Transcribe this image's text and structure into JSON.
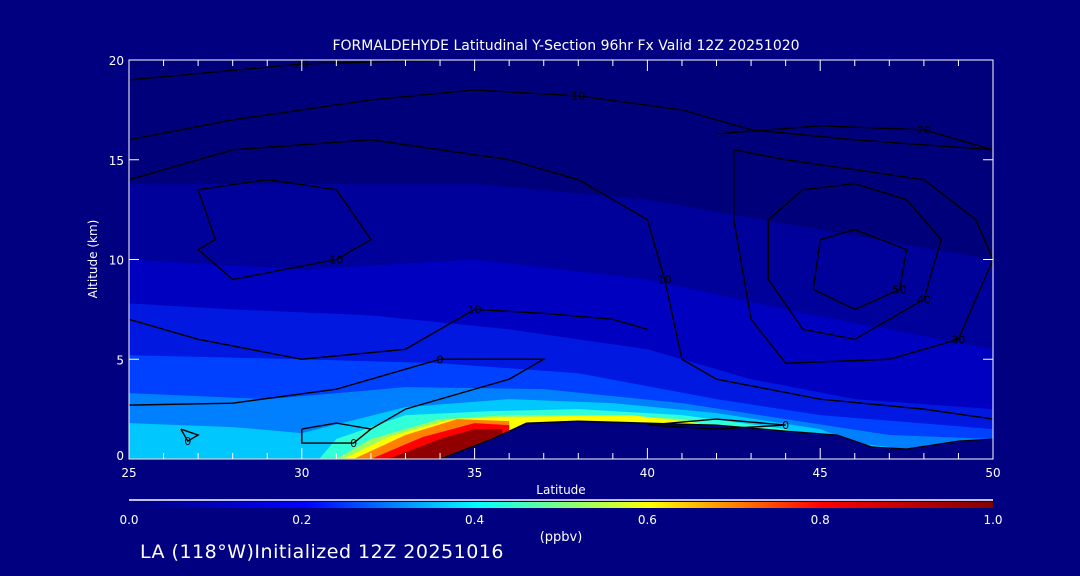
{
  "chart_data": {
    "type": "heatmap",
    "title": "FORMALDEHYDE Latitudinal Y-Section 96hr  Fx Valid 12Z 20251020",
    "xlabel": "Latitude",
    "ylabel": "Altitude (km)",
    "xlim": [
      25,
      50
    ],
    "ylim": [
      0,
      20
    ],
    "xticks": [
      "25",
      "30",
      "35",
      "40",
      "45",
      "50"
    ],
    "yticks": [
      "0",
      "5",
      "10",
      "15",
      "20"
    ],
    "colorbar": {
      "label": "(ppbv)",
      "range": [
        0.0,
        1.0
      ],
      "ticks": [
        "0.0",
        "0.2",
        "0.4",
        "0.6",
        "0.8",
        "1.0"
      ],
      "colormap": [
        "#000080",
        "#0000ff",
        "#00ffff",
        "#ffff00",
        "#ff0000",
        "#800000"
      ]
    },
    "filled_regions": [
      {
        "level": 0.05,
        "color": "#00009a",
        "top": [
          [
            25,
            13.8
          ],
          [
            35,
            13.8
          ],
          [
            40,
            13
          ],
          [
            45,
            11.5
          ],
          [
            50,
            10
          ]
        ]
      },
      {
        "level": 0.08,
        "color": "#0000c0",
        "top": [
          [
            25,
            10
          ],
          [
            30,
            9.5
          ],
          [
            35,
            10
          ],
          [
            40,
            9
          ],
          [
            44,
            7.5
          ],
          [
            47,
            6.5
          ],
          [
            50,
            5.5
          ]
        ]
      },
      {
        "level": 0.12,
        "color": "#0018e0",
        "top": [
          [
            25,
            7.8
          ],
          [
            28,
            7.5
          ],
          [
            32,
            7.2
          ],
          [
            36,
            6.5
          ],
          [
            40,
            5.5
          ],
          [
            43,
            4
          ],
          [
            46,
            3
          ],
          [
            50,
            2.5
          ]
        ]
      },
      {
        "level": 0.16,
        "color": "#0040ff",
        "top": [
          [
            25,
            5.2
          ],
          [
            30,
            5
          ],
          [
            34,
            4.8
          ],
          [
            38,
            4.3
          ],
          [
            42,
            3
          ],
          [
            45,
            2.2
          ],
          [
            50,
            1.5
          ]
        ]
      },
      {
        "level": 0.22,
        "color": "#0080ff",
        "top": [
          [
            25,
            3.3
          ],
          [
            29,
            3
          ],
          [
            33,
            3.6
          ],
          [
            37,
            3.5
          ],
          [
            41,
            2.8
          ],
          [
            44,
            2
          ],
          [
            47,
            1.2
          ],
          [
            50,
            1
          ]
        ]
      },
      {
        "level": 0.3,
        "color": "#00c8ff",
        "top": [
          [
            25,
            1.8
          ],
          [
            28,
            1.6
          ],
          [
            30,
            1.3
          ],
          [
            33,
            2.6
          ],
          [
            36,
            3
          ],
          [
            39,
            2.8
          ],
          [
            42,
            2.3
          ],
          [
            45,
            1.5
          ],
          [
            46,
            0.8
          ],
          [
            47,
            0.6
          ]
        ]
      },
      {
        "level": 0.4,
        "color": "#30ffd8",
        "top": [
          [
            30.5,
            0
          ],
          [
            31,
            1
          ],
          [
            33,
            2.2
          ],
          [
            35.5,
            2.4
          ],
          [
            38,
            2.5
          ],
          [
            41,
            2.2
          ],
          [
            44,
            1.5
          ],
          [
            45,
            1
          ]
        ]
      },
      {
        "level": 0.5,
        "color": "#a0ff60",
        "top": [
          [
            31,
            0
          ],
          [
            32,
            1
          ],
          [
            34,
            2
          ],
          [
            36,
            2.2
          ],
          [
            39,
            2.2
          ],
          [
            41,
            2
          ],
          [
            42,
            1.5
          ]
        ]
      },
      {
        "level": 0.6,
        "color": "#ffff00",
        "top": [
          [
            31.2,
            0
          ],
          [
            32.5,
            1.1
          ],
          [
            34.3,
            2
          ],
          [
            36,
            2.1
          ],
          [
            39.5,
            2.2
          ],
          [
            41.5,
            1.8
          ]
        ]
      },
      {
        "level": 0.75,
        "color": "#ff8000",
        "top": [
          [
            31.5,
            0
          ],
          [
            33,
            1.2
          ],
          [
            34.5,
            2
          ],
          [
            36,
            1.9
          ]
        ]
      },
      {
        "level": 0.9,
        "color": "#ff0000",
        "top": [
          [
            32,
            0
          ],
          [
            33.5,
            1.1
          ],
          [
            35,
            1.8
          ],
          [
            36,
            1.7
          ]
        ]
      },
      {
        "level": 1.0,
        "color": "#900000",
        "top": [
          [
            32.5,
            0
          ],
          [
            34,
            1.0
          ],
          [
            35,
            1.5
          ],
          [
            35.8,
            1.5
          ]
        ]
      }
    ],
    "terrain": [
      [
        25,
        0
      ],
      [
        34,
        0
      ],
      [
        35.5,
        1
      ],
      [
        36.5,
        1.8
      ],
      [
        38,
        1.9
      ],
      [
        42,
        1.7
      ],
      [
        44,
        1.4
      ],
      [
        45.5,
        1.2
      ],
      [
        46.5,
        0.6
      ],
      [
        47.5,
        0.5
      ],
      [
        49,
        0.9
      ],
      [
        50,
        1
      ]
    ],
    "contour_labels": [
      "0",
      "10",
      "20",
      "30",
      "40",
      "50"
    ],
    "contours": [
      {
        "label": "10",
        "points": [
          [
            25,
            16
          ],
          [
            28,
            17
          ],
          [
            32,
            18
          ],
          [
            35,
            18.5
          ],
          [
            38,
            18.2
          ],
          [
            41,
            17.5
          ],
          [
            43,
            16.5
          ],
          [
            46,
            16
          ],
          [
            50,
            15.5
          ]
        ]
      },
      {
        "label": "20",
        "points": [
          [
            25,
            19
          ],
          [
            30,
            19.8
          ],
          [
            34,
            20
          ]
        ]
      },
      {
        "label": "20",
        "points": [
          [
            42,
            16.3
          ],
          [
            45,
            16.7
          ],
          [
            48,
            16.5
          ],
          [
            50,
            15.5
          ]
        ]
      },
      {
        "label": "10",
        "points": [
          [
            25,
            14
          ],
          [
            28,
            15.5
          ],
          [
            32,
            16
          ],
          [
            36,
            15
          ],
          [
            38,
            14
          ],
          [
            40,
            12
          ],
          [
            40.5,
            9
          ],
          [
            41,
            5
          ],
          [
            42,
            4
          ],
          [
            45,
            3
          ],
          [
            48,
            2.5
          ],
          [
            50,
            2
          ]
        ]
      },
      {
        "label": "30",
        "points": [
          [
            42.5,
            15.5
          ],
          [
            44,
            15
          ],
          [
            46,
            14.5
          ],
          [
            48,
            14
          ],
          [
            49.5,
            12
          ],
          [
            50,
            10
          ],
          [
            49,
            6
          ],
          [
            47,
            5
          ],
          [
            44,
            4.8
          ],
          [
            43,
            7
          ],
          [
            42.5,
            12
          ],
          [
            42.5,
            15.5
          ]
        ]
      },
      {
        "label": "40",
        "points": [
          [
            43.5,
            12
          ],
          [
            44.5,
            13.5
          ],
          [
            46,
            13.8
          ],
          [
            47.5,
            13
          ],
          [
            48.5,
            11
          ],
          [
            48,
            8
          ],
          [
            46,
            6
          ],
          [
            44.5,
            6.5
          ],
          [
            43.5,
            9
          ],
          [
            43.5,
            12
          ]
        ]
      },
      {
        "label": "50",
        "points": [
          [
            45,
            11
          ],
          [
            46,
            11.5
          ],
          [
            47.5,
            10.5
          ],
          [
            47.3,
            8.5
          ],
          [
            46,
            7.5
          ],
          [
            44.8,
            8.5
          ],
          [
            45,
            11
          ]
        ]
      },
      {
        "label": "10",
        "points": [
          [
            27,
            13.5
          ],
          [
            29,
            14
          ],
          [
            31,
            13.5
          ],
          [
            32,
            11
          ],
          [
            31,
            10
          ],
          [
            28,
            9
          ],
          [
            27,
            10.5
          ],
          [
            27.5,
            11
          ],
          [
            27,
            13.5
          ]
        ]
      },
      {
        "label": "10",
        "points": [
          [
            25,
            7
          ],
          [
            27,
            6
          ],
          [
            30,
            5
          ],
          [
            33,
            5.5
          ],
          [
            35,
            7.5
          ],
          [
            37,
            7.3
          ],
          [
            39,
            7
          ],
          [
            40,
            6.5
          ]
        ]
      },
      {
        "label": "0",
        "points": [
          [
            25,
            2.7
          ],
          [
            28,
            2.8
          ],
          [
            31,
            3.5
          ],
          [
            33,
            4.5
          ],
          [
            34,
            5
          ],
          [
            37,
            5
          ],
          [
            36,
            4
          ],
          [
            33,
            2.5
          ],
          [
            32,
            1.5
          ]
        ]
      },
      {
        "label": "0",
        "points": [
          [
            30,
            1.5
          ],
          [
            31,
            1.8
          ],
          [
            32,
            1.5
          ],
          [
            31.5,
            0.8
          ],
          [
            30,
            0.8
          ],
          [
            30,
            1.5
          ]
        ]
      },
      {
        "label": "0",
        "points": [
          [
            26.5,
            1.5
          ],
          [
            27,
            1.2
          ],
          [
            26.7,
            0.9
          ],
          [
            26.5,
            1.5
          ]
        ]
      },
      {
        "label": "0",
        "points": [
          [
            40,
            1.7
          ],
          [
            42,
            2
          ],
          [
            44,
            1.7
          ],
          [
            42,
            1.5
          ],
          [
            40,
            1.7
          ]
        ]
      }
    ]
  },
  "footer": {
    "text": "LA (118°W)Initialized 12Z 20251016"
  }
}
